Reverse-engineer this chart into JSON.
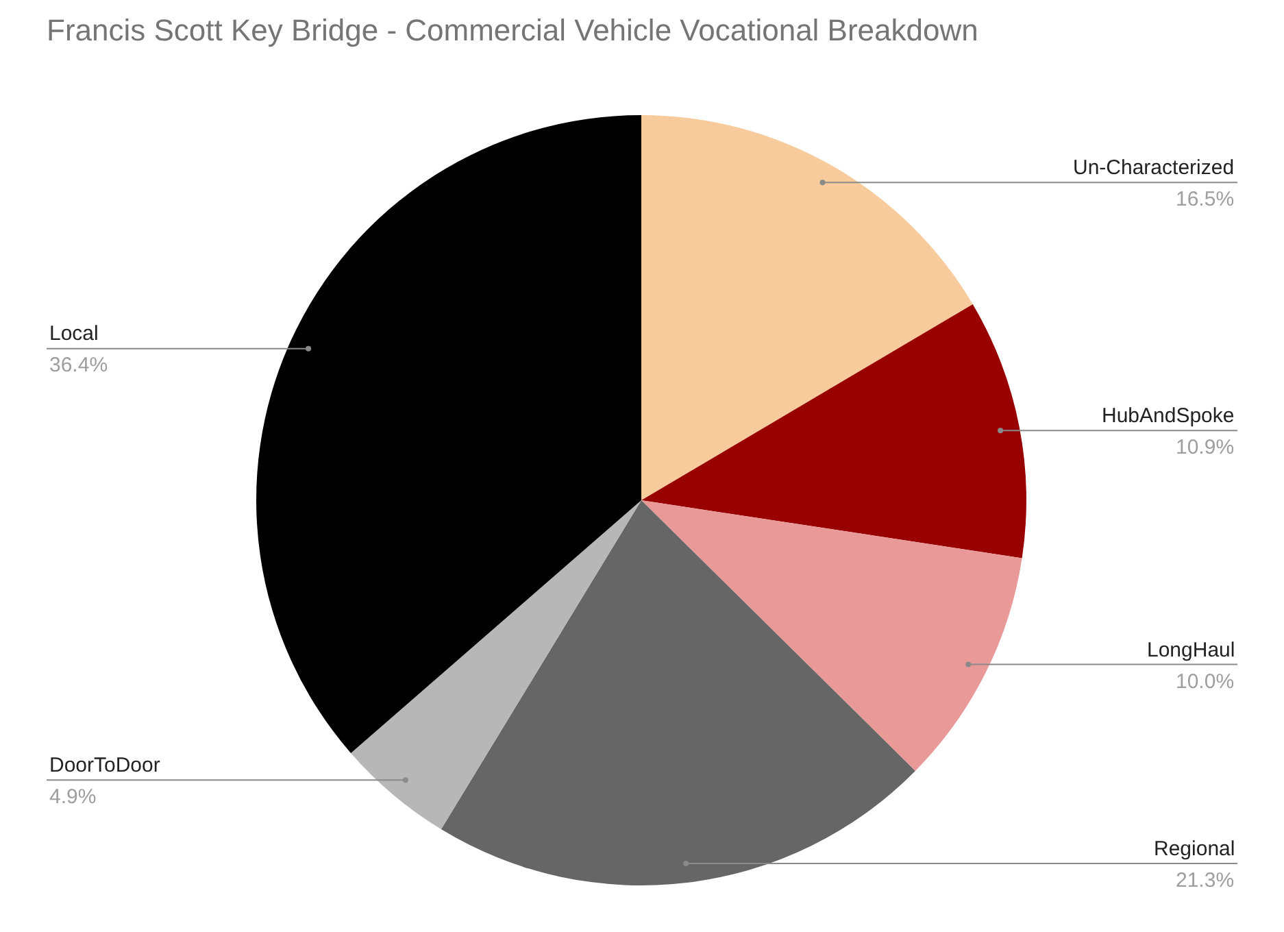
{
  "chart_data": {
    "type": "pie",
    "title": "Francis Scott Key Bridge - Commercial Vehicle Vocational Breakdown",
    "categories": [
      "Un-Characterized",
      "HubAndSpoke",
      "LongHaul",
      "Regional",
      "DoorToDoor",
      "Local"
    ],
    "values": [
      16.5,
      10.9,
      10.0,
      21.3,
      4.9,
      36.4
    ],
    "value_labels": [
      "16.5%",
      "10.9%",
      "10.0%",
      "21.3%",
      "4.9%",
      "36.4%"
    ],
    "colors": [
      "#f8cb9c",
      "#990000",
      "#ea9999",
      "#666666",
      "#b7b7b7",
      "#000000"
    ],
    "legend": false
  }
}
